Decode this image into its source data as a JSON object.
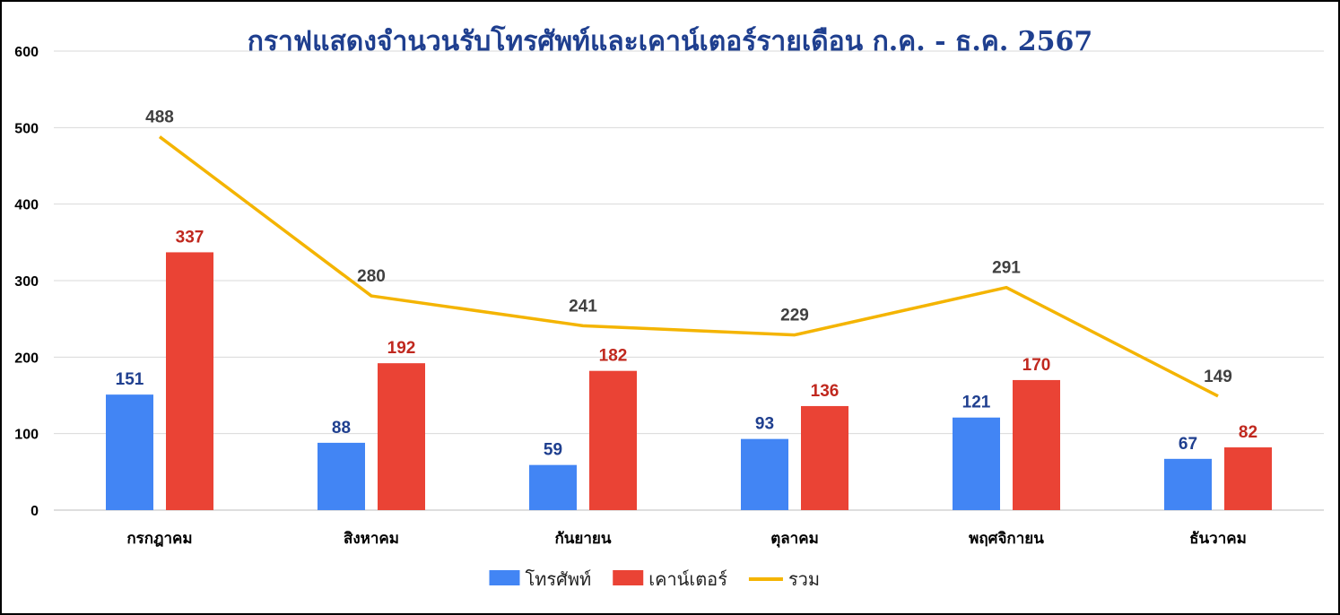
{
  "chart_data": {
    "type": "bar",
    "title": "กราฟแสดงจำนวนรับโทรศัพท์และเคาน์เตอร์รายเดือน ก.ค. - ธ.ค. 2567",
    "categories": [
      "กรกฎาคม",
      "สิงหาคม",
      "กันยายน",
      "ตุลาคม",
      "พฤศจิกายน",
      "ธันวาคม"
    ],
    "series": [
      {
        "name": "โทรศัพท์",
        "type": "bar",
        "color": "#4285F4",
        "label_color": "#1F3F8F",
        "values": [
          151,
          88,
          59,
          93,
          121,
          67
        ]
      },
      {
        "name": "เคาน์เตอร์",
        "type": "bar",
        "color": "#EA4335",
        "label_color": "#C0281E",
        "values": [
          337,
          192,
          182,
          136,
          170,
          82
        ]
      },
      {
        "name": "รวม",
        "type": "line",
        "color": "#F4B400",
        "label_color": "#404040",
        "values": [
          488,
          280,
          241,
          229,
          291,
          149
        ]
      }
    ],
    "ylim": [
      0,
      600
    ],
    "yticks": [
      0,
      100,
      200,
      300,
      400,
      500,
      600
    ],
    "grid": true,
    "legend_position": "bottom",
    "title_color": "#1F3F8F"
  }
}
